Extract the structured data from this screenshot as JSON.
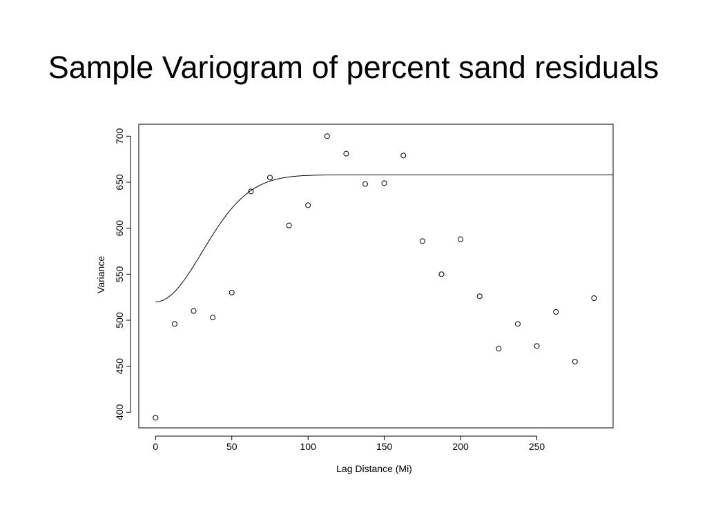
{
  "title": "Sample Variogram of percent sand residuals",
  "chart_data": {
    "type": "scatter",
    "title": "Sample Variogram of percent sand residuals",
    "xlabel": "Lag Distance (Mi)",
    "ylabel": "Variance",
    "xlim": [
      -11,
      300
    ],
    "ylim": [
      383,
      713
    ],
    "xticks": [
      0,
      50,
      100,
      150,
      200,
      250
    ],
    "yticks": [
      400,
      450,
      500,
      550,
      600,
      650,
      700
    ],
    "grid": false,
    "points": [
      {
        "x": 0,
        "y": 394
      },
      {
        "x": 12.5,
        "y": 496
      },
      {
        "x": 25,
        "y": 510
      },
      {
        "x": 37.5,
        "y": 503
      },
      {
        "x": 50,
        "y": 530
      },
      {
        "x": 62.5,
        "y": 640
      },
      {
        "x": 75,
        "y": 655
      },
      {
        "x": 87.5,
        "y": 603
      },
      {
        "x": 100,
        "y": 625
      },
      {
        "x": 112.5,
        "y": 700
      },
      {
        "x": 125,
        "y": 681
      },
      {
        "x": 137.5,
        "y": 648
      },
      {
        "x": 150,
        "y": 649
      },
      {
        "x": 162.5,
        "y": 679
      },
      {
        "x": 175,
        "y": 586
      },
      {
        "x": 187.5,
        "y": 550
      },
      {
        "x": 200,
        "y": 588
      },
      {
        "x": 212.5,
        "y": 526
      },
      {
        "x": 225,
        "y": 469
      },
      {
        "x": 237.5,
        "y": 496
      },
      {
        "x": 250,
        "y": 472
      },
      {
        "x": 262.5,
        "y": 509
      },
      {
        "x": 275,
        "y": 455
      },
      {
        "x": 287.5,
        "y": 524
      }
    ],
    "model_curve": {
      "type": "gaussian",
      "nugget": 520,
      "sill": 658,
      "range": 75,
      "x_start": 0,
      "x_end": 300
    }
  }
}
